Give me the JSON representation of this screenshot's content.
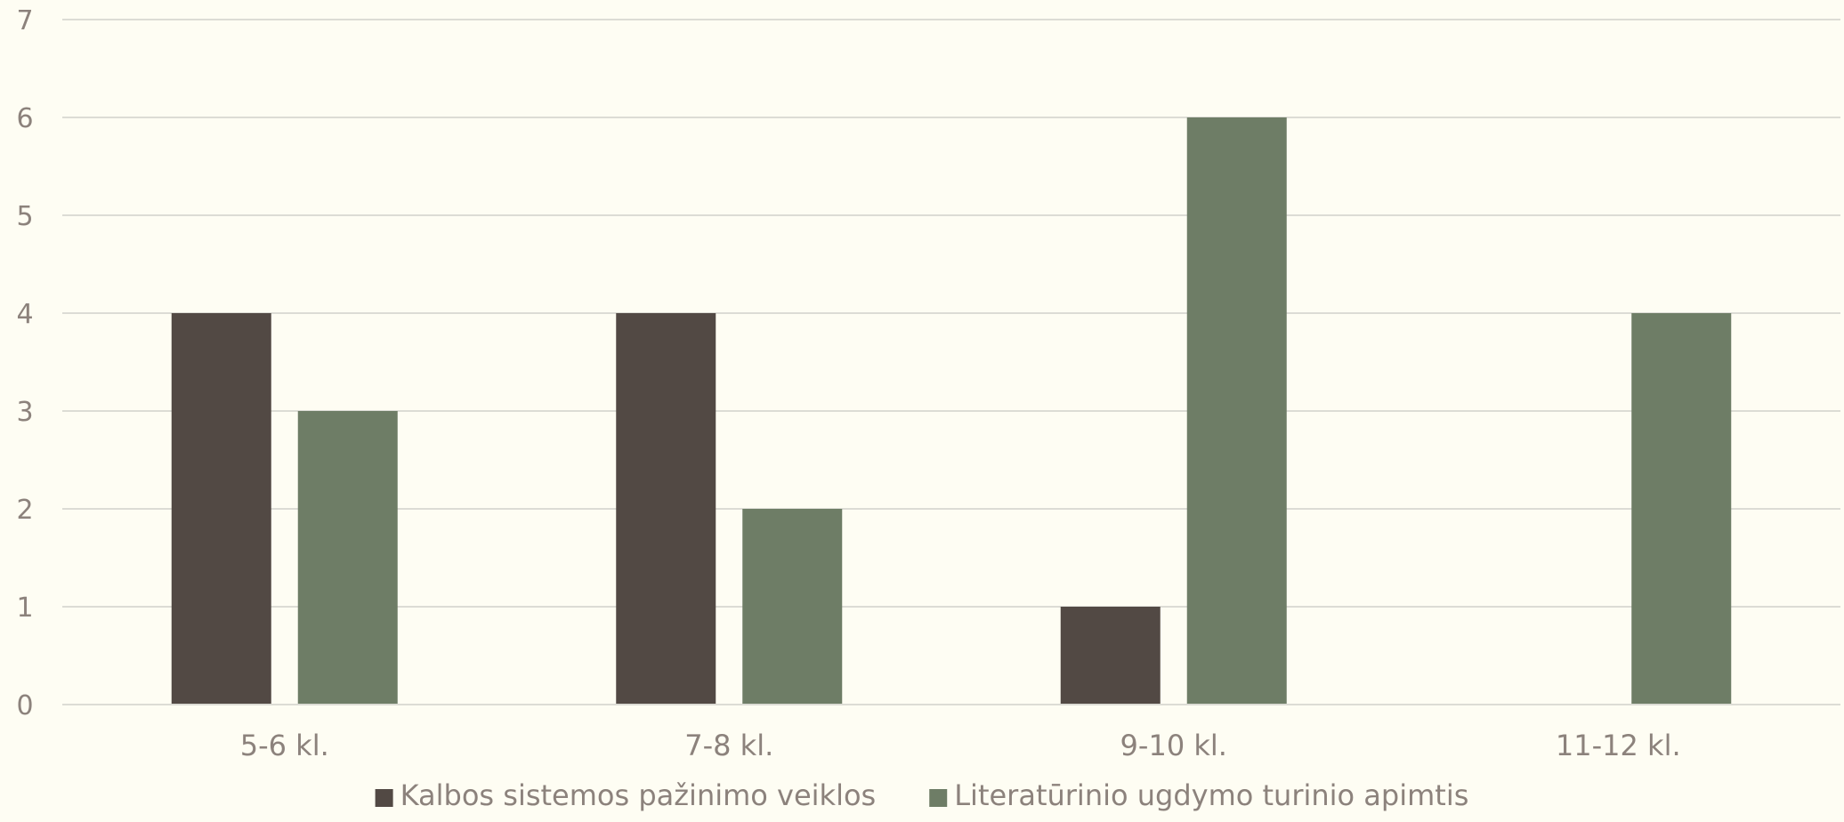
{
  "chart_data": {
    "type": "bar",
    "title": "",
    "xlabel": "",
    "ylabel": "",
    "categories": [
      "5-6 kl.",
      "7-8 kl.",
      "9-10 kl.",
      "11-12 kl."
    ],
    "series": [
      {
        "name": "Kalbos sistemos pažinimo veiklos",
        "values": [
          4,
          4,
          1,
          0
        ],
        "color": "#524944"
      },
      {
        "name": "Literatūrinio ugdymo turinio apimtis",
        "values": [
          3,
          2,
          6,
          4
        ],
        "color": "#6E7D66"
      }
    ],
    "ylim": [
      0,
      7
    ],
    "yticks": [
      "0",
      "1",
      "2",
      "3",
      "4",
      "5",
      "6",
      "7"
    ],
    "grid": true,
    "legend_position": "bottom-center"
  }
}
